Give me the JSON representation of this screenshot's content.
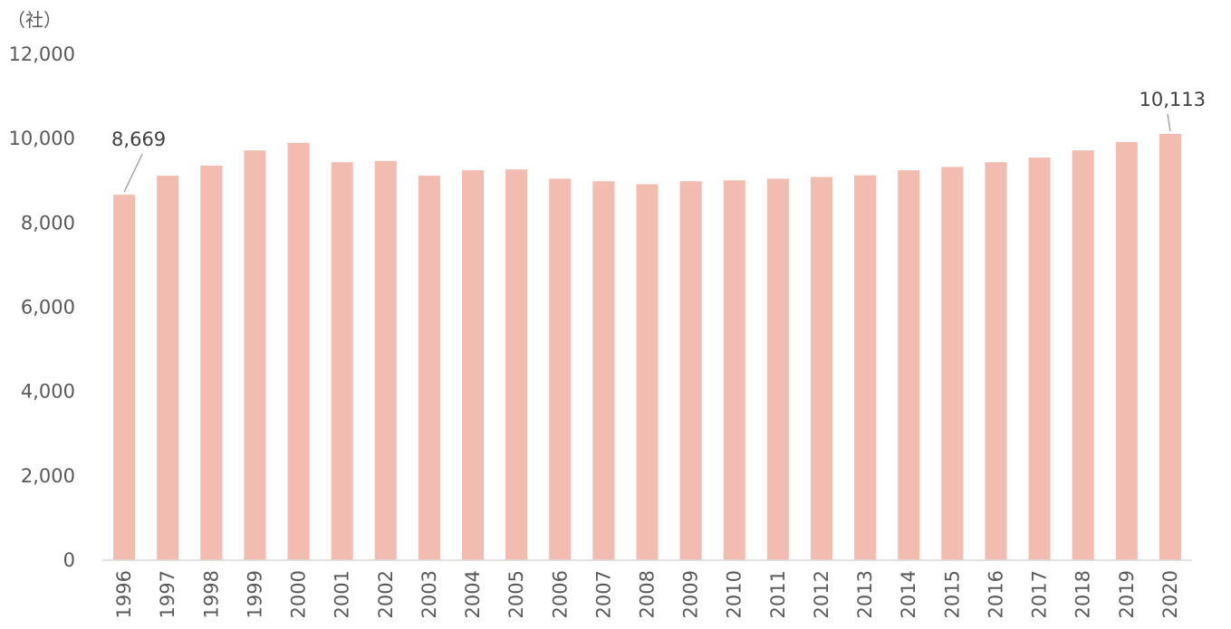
{
  "chart_data": {
    "type": "bar",
    "unit_label": "（社）",
    "categories": [
      "1996",
      "1997",
      "1998",
      "1999",
      "2000",
      "2001",
      "2002",
      "2003",
      "2004",
      "2005",
      "2006",
      "2007",
      "2008",
      "2009",
      "2010",
      "2011",
      "2012",
      "2013",
      "2014",
      "2015",
      "2016",
      "2017",
      "2018",
      "2019",
      "2020"
    ],
    "values": [
      8669,
      9120,
      9360,
      9720,
      9900,
      9440,
      9470,
      9120,
      9250,
      9270,
      9050,
      8990,
      8920,
      8990,
      9010,
      9050,
      9090,
      9130,
      9250,
      9330,
      9440,
      9550,
      9720,
      9920,
      10113
    ],
    "data_labels": [
      {
        "category": "1996",
        "text": "8,669"
      },
      {
        "category": "2020",
        "text": "10,113"
      }
    ],
    "ylim": [
      0,
      12000
    ],
    "y_ticks": [
      0,
      2000,
      4000,
      6000,
      8000,
      10000,
      12000
    ],
    "y_tick_labels": [
      "0",
      "2,000",
      "4,000",
      "6,000",
      "8,000",
      "10,000",
      "12,000"
    ],
    "bar_color": "#f2bcb0",
    "grid": false,
    "legend": "none"
  }
}
